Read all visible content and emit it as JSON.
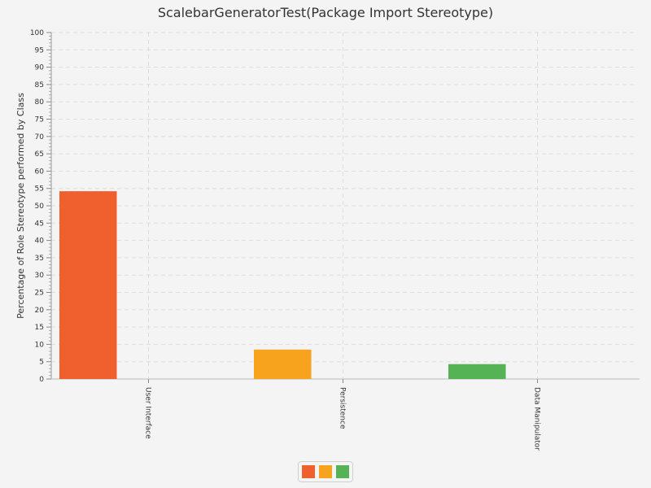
{
  "chart_data": {
    "type": "bar",
    "title": "ScalebarGeneratorTest(Package Import Stereotype)",
    "xlabel": "",
    "ylabel": "Percentage of Role Stereotype performed by Class",
    "ylim": [
      0,
      100
    ],
    "ytick_step": 5,
    "grid": true,
    "legend_position": "bottom-center",
    "categories": [
      "User Interface",
      "Persistence",
      "Data Manipulator"
    ],
    "values": [
      54.2,
      8.5,
      4.3
    ],
    "colors": [
      "#f0602f",
      "#f7a31e",
      "#55b255"
    ],
    "legend": [
      {
        "name": "",
        "color": "#f0602f"
      },
      {
        "name": "",
        "color": "#f7a31e"
      },
      {
        "name": "",
        "color": "#55b255"
      }
    ]
  }
}
